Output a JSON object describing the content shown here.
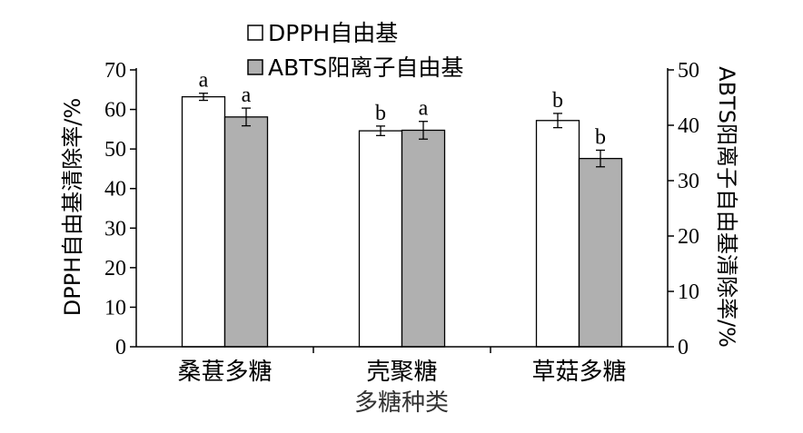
{
  "chart_data": {
    "type": "bar",
    "categories": [
      "桑葚多糖",
      "壳聚糖",
      "草菇多糖"
    ],
    "xlabel": "多糖种类",
    "ylabel": "DPPH自由基清除率/%",
    "y2label": "ABTS阳离子自由基清除率/%",
    "ylim": [
      0,
      70
    ],
    "y2lim": [
      0,
      50
    ],
    "yticks": [
      0,
      10,
      20,
      30,
      40,
      50,
      60,
      70
    ],
    "y2ticks": [
      0,
      10,
      20,
      30,
      40,
      50
    ],
    "legend_position": "top",
    "series": [
      {
        "name": "DPPH自由基",
        "axis": "left",
        "color": "#ffffff",
        "values": [
          63.2,
          54.6,
          57.2
        ],
        "errors": [
          0.9,
          1.2,
          1.8
        ],
        "labels": [
          "a",
          "b",
          "b"
        ]
      },
      {
        "name": "ABTS阳离子自由基",
        "axis": "right",
        "color": "#b0b0b0",
        "values": [
          41.5,
          39.1,
          34.0
        ],
        "errors": [
          1.6,
          1.6,
          1.5
        ],
        "labels": [
          "a",
          "a",
          "b"
        ]
      }
    ]
  }
}
